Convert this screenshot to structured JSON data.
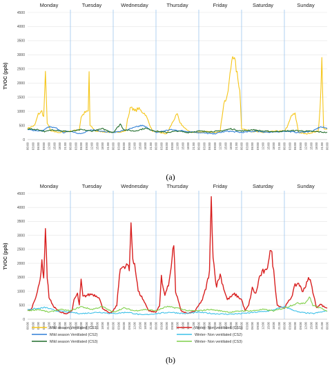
{
  "chart_data": [
    {
      "panel_label": "(a)",
      "type": "line",
      "days": [
        "Monday",
        "Tuesday",
        "Wednesday",
        "Thursday",
        "Friday",
        "Saturday",
        "Sunday"
      ],
      "ylabel": "TVOC (ppb)",
      "ylim": [
        0,
        4500
      ],
      "yticks": [
        "0",
        "500",
        "1000",
        "1500",
        "2000",
        "2500",
        "3000",
        "3500",
        "4000",
        "4500"
      ],
      "x_tick_labels": [
        "00:00",
        "03:00",
        "06:00",
        "09:00",
        "12:00",
        "15:00",
        "18:00",
        "21:00"
      ],
      "x_end_label": "00:00",
      "series": [
        {
          "name": "Mild season Ventilated (CS1)",
          "color": "#f5c518",
          "keypoints": [
            [
              0,
              400
            ],
            [
              4,
              500
            ],
            [
              6,
              900
            ],
            [
              8,
              1000
            ],
            [
              9,
              800
            ],
            [
              10,
              2300
            ],
            [
              11,
              600
            ],
            [
              13,
              300
            ],
            [
              18,
              250
            ],
            [
              24,
              300
            ],
            [
              29,
              350
            ],
            [
              30,
              800
            ],
            [
              32,
              950
            ],
            [
              34,
              1000
            ],
            [
              34.5,
              2400
            ],
            [
              35,
              500
            ],
            [
              38,
              300
            ],
            [
              48,
              250
            ],
            [
              55,
              300
            ],
            [
              56,
              700
            ],
            [
              58,
              1200
            ],
            [
              60,
              1000
            ],
            [
              62,
              1100
            ],
            [
              64,
              1000
            ],
            [
              66,
              900
            ],
            [
              70,
              300
            ],
            [
              78,
              200
            ],
            [
              82,
              700
            ],
            [
              84,
              900
            ],
            [
              85,
              650
            ],
            [
              88,
              400
            ],
            [
              92,
              250
            ],
            [
              100,
              280
            ],
            [
              104,
              250
            ],
            [
              108,
              300
            ],
            [
              110,
              1300
            ],
            [
              112,
              1500
            ],
            [
              113,
              2000
            ],
            [
              115,
              3100
            ],
            [
              117,
              2500
            ],
            [
              118,
              2100
            ],
            [
              119,
              1800
            ],
            [
              120,
              400
            ],
            [
              124,
              300
            ],
            [
              132,
              250
            ],
            [
              140,
              300
            ],
            [
              144,
              300
            ],
            [
              146,
              500
            ],
            [
              148,
              850
            ],
            [
              150,
              900
            ],
            [
              152,
              250
            ],
            [
              156,
              200
            ],
            [
              163,
              300
            ],
            [
              164,
              1100
            ],
            [
              165,
              2800
            ],
            [
              166,
              400
            ],
            [
              168,
              350
            ]
          ]
        },
        {
          "name": "Mild season Ventilated (CS2)",
          "color": "#2f7fd6",
          "keypoints": [
            [
              0,
              350
            ],
            [
              8,
              300
            ],
            [
              12,
              450
            ],
            [
              16,
              400
            ],
            [
              20,
              250
            ],
            [
              24,
              300
            ],
            [
              30,
              200
            ],
            [
              36,
              350
            ],
            [
              42,
              300
            ],
            [
              48,
              250
            ],
            [
              56,
              350
            ],
            [
              64,
              500
            ],
            [
              66,
              450
            ],
            [
              72,
              250
            ],
            [
              80,
              350
            ],
            [
              88,
              300
            ],
            [
              96,
              250
            ],
            [
              104,
              200
            ],
            [
              112,
              300
            ],
            [
              120,
              250
            ],
            [
              128,
              300
            ],
            [
              136,
              250
            ],
            [
              144,
              300
            ],
            [
              152,
              250
            ],
            [
              160,
              300
            ],
            [
              164,
              450
            ],
            [
              168,
              400
            ]
          ]
        },
        {
          "name": "Mild season Ventilated (CS3)",
          "color": "#1f6b2a",
          "keypoints": [
            [
              0,
              380
            ],
            [
              6,
              350
            ],
            [
              10,
              280
            ],
            [
              14,
              350
            ],
            [
              20,
              300
            ],
            [
              24,
              280
            ],
            [
              30,
              350
            ],
            [
              36,
              300
            ],
            [
              42,
              380
            ],
            [
              48,
              250
            ],
            [
              52,
              550
            ],
            [
              54,
              350
            ],
            [
              60,
              300
            ],
            [
              66,
              400
            ],
            [
              72,
              300
            ],
            [
              78,
              250
            ],
            [
              84,
              300
            ],
            [
              90,
              250
            ],
            [
              96,
              300
            ],
            [
              102,
              280
            ],
            [
              108,
              300
            ],
            [
              114,
              380
            ],
            [
              120,
              300
            ],
            [
              126,
              350
            ],
            [
              132,
              300
            ],
            [
              138,
              280
            ],
            [
              144,
              300
            ],
            [
              150,
              320
            ],
            [
              156,
              300
            ],
            [
              162,
              280
            ],
            [
              168,
              250
            ]
          ]
        },
        {
          "name": "Winter- Non ventilated (CS1)",
          "color": "#ffffff",
          "keypoints": []
        }
      ]
    },
    {
      "panel_label": "(b)",
      "type": "line",
      "days": [
        "Monday",
        "Tuesday",
        "Wednesday",
        "Thursday",
        "Friday",
        "Saturday",
        "Sunday"
      ],
      "ylabel": "TVOC (ppb)",
      "ylim": [
        0,
        4500
      ],
      "yticks": [
        "0",
        "500",
        "1000",
        "1500",
        "2000",
        "2500",
        "3000",
        "3500",
        "4000",
        "4500"
      ],
      "x_tick_labels": [
        "00:00",
        "03:00",
        "06:00",
        "09:00",
        "12:00",
        "15:00",
        "18:00",
        "21:00"
      ],
      "x_end_label": "00:00",
      "series": [
        {
          "name": "Winter- Non ventilated (CS1)",
          "color": "#d81e1e",
          "keypoints": [
            [
              0,
              300
            ],
            [
              2,
              350
            ],
            [
              4,
              700
            ],
            [
              6,
              1100
            ],
            [
              7,
              1400
            ],
            [
              8,
              2150
            ],
            [
              9,
              1400
            ],
            [
              10,
              3350
            ],
            [
              11,
              1500
            ],
            [
              12,
              800
            ],
            [
              14,
              500
            ],
            [
              18,
              250
            ],
            [
              22,
              200
            ],
            [
              25,
              300
            ],
            [
              26,
              700
            ],
            [
              28,
              900
            ],
            [
              29,
              500
            ],
            [
              30,
              1400
            ],
            [
              31,
              800
            ],
            [
              33,
              850
            ],
            [
              36,
              900
            ],
            [
              40,
              800
            ],
            [
              42,
              400
            ],
            [
              46,
              200
            ],
            [
              48,
              300
            ],
            [
              50,
              500
            ],
            [
              52,
              1900
            ],
            [
              54,
              1800
            ],
            [
              56,
              1950
            ],
            [
              57,
              1700
            ],
            [
              58,
              3450
            ],
            [
              59,
              2200
            ],
            [
              60,
              2000
            ],
            [
              62,
              1000
            ],
            [
              64,
              800
            ],
            [
              68,
              300
            ],
            [
              72,
              250
            ],
            [
              74,
              500
            ],
            [
              75,
              1500
            ],
            [
              76,
              1100
            ],
            [
              77,
              900
            ],
            [
              79,
              1200
            ],
            [
              80,
              1700
            ],
            [
              82,
              2700
            ],
            [
              83,
              1000
            ],
            [
              86,
              300
            ],
            [
              90,
              200
            ],
            [
              94,
              300
            ],
            [
              96,
              500
            ],
            [
              98,
              700
            ],
            [
              100,
              1100
            ],
            [
              102,
              1700
            ],
            [
              103,
              4300
            ],
            [
              104,
              2300
            ],
            [
              105,
              1600
            ],
            [
              106,
              1200
            ],
            [
              108,
              1600
            ],
            [
              110,
              1100
            ],
            [
              112,
              700
            ],
            [
              116,
              900
            ],
            [
              120,
              700
            ],
            [
              122,
              300
            ],
            [
              124,
              500
            ],
            [
              126,
              1100
            ],
            [
              128,
              900
            ],
            [
              130,
              1500
            ],
            [
              132,
              1700
            ],
            [
              134,
              1700
            ],
            [
              136,
              2500
            ],
            [
              137,
              2300
            ],
            [
              138,
              1700
            ],
            [
              140,
              500
            ],
            [
              144,
              400
            ],
            [
              148,
              800
            ],
            [
              150,
              1200
            ],
            [
              152,
              1300
            ],
            [
              154,
              1000
            ],
            [
              156,
              1200
            ],
            [
              158,
              1500
            ],
            [
              160,
              1000
            ],
            [
              162,
              400
            ],
            [
              164,
              550
            ],
            [
              166,
              450
            ],
            [
              168,
              400
            ]
          ]
        },
        {
          "name": "Winter- Non ventilated (CS2)",
          "color": "#3cc0e8",
          "keypoints": [
            [
              0,
              350
            ],
            [
              6,
              380
            ],
            [
              10,
              420
            ],
            [
              16,
              300
            ],
            [
              24,
              250
            ],
            [
              30,
              200
            ],
            [
              40,
              250
            ],
            [
              48,
              200
            ],
            [
              56,
              250
            ],
            [
              64,
              150
            ],
            [
              72,
              200
            ],
            [
              80,
              250
            ],
            [
              88,
              200
            ],
            [
              96,
              250
            ],
            [
              104,
              200
            ],
            [
              112,
              180
            ],
            [
              120,
              200
            ],
            [
              128,
              250
            ],
            [
              136,
              300
            ],
            [
              144,
              450
            ],
            [
              148,
              350
            ],
            [
              152,
              250
            ],
            [
              160,
              200
            ],
            [
              168,
              300
            ]
          ]
        },
        {
          "name": "Winter- Non ventilated (CS3)",
          "color": "#7fcf4a",
          "keypoints": [
            [
              0,
              300
            ],
            [
              6,
              350
            ],
            [
              12,
              250
            ],
            [
              18,
              350
            ],
            [
              24,
              300
            ],
            [
              30,
              450
            ],
            [
              36,
              350
            ],
            [
              42,
              450
            ],
            [
              48,
              250
            ],
            [
              54,
              400
            ],
            [
              60,
              300
            ],
            [
              66,
              350
            ],
            [
              72,
              300
            ],
            [
              78,
              450
            ],
            [
              84,
              400
            ],
            [
              90,
              300
            ],
            [
              96,
              300
            ],
            [
              102,
              350
            ],
            [
              108,
              300
            ],
            [
              114,
              250
            ],
            [
              120,
              300
            ],
            [
              126,
              300
            ],
            [
              132,
              350
            ],
            [
              138,
              300
            ],
            [
              144,
              400
            ],
            [
              150,
              550
            ],
            [
              156,
              600
            ],
            [
              158,
              800
            ],
            [
              160,
              500
            ],
            [
              164,
              400
            ],
            [
              168,
              300
            ]
          ]
        }
      ]
    }
  ],
  "legend": [
    {
      "name": "Mild season Ventilated (CS1)",
      "color": "#f5c518"
    },
    {
      "name": "Winter- Non ventilated (CS1)",
      "color": "#d81e1e"
    },
    {
      "name": "Mild season Ventilated (CS2)",
      "color": "#2f7fd6"
    },
    {
      "name": "Winter- Non ventilated (CS2)",
      "color": "#3cc0e8"
    },
    {
      "name": "Mild season Ventilated (CS3)",
      "color": "#1f6b2a"
    },
    {
      "name": "Winter- Non ventilated (CS3)",
      "color": "#7fcf4a"
    }
  ]
}
